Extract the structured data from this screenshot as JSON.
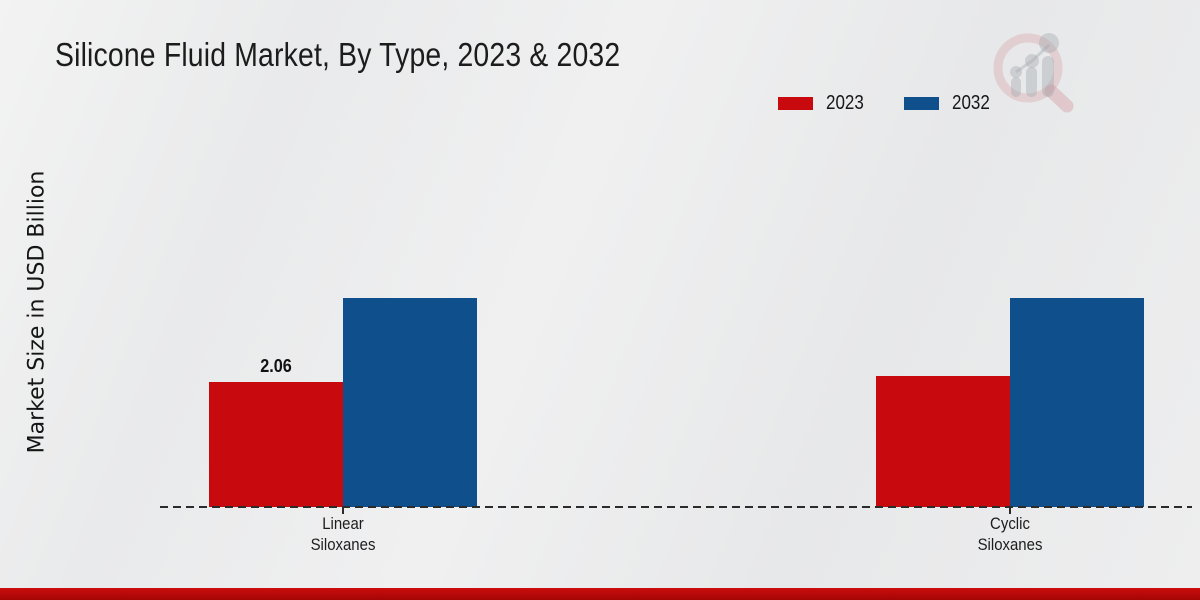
{
  "title": "Silicone Fluid Market, By Type, 2023 & 2032",
  "y_axis_label": "Market Size in USD Billion",
  "legend": {
    "position": "top-right",
    "items": [
      {
        "label": "2023",
        "color": "#c80a0f"
      },
      {
        "label": "2032",
        "color": "#0f4f8c"
      }
    ]
  },
  "footer": {
    "banner_color": "#b20808"
  },
  "watermark": {
    "name": "market-research-magnifier-logo"
  },
  "chart_data": {
    "type": "bar",
    "title": "Silicone Fluid Market, By Type, 2023 & 2032",
    "xlabel": "",
    "ylabel": "Market Size in USD Billion",
    "categories": [
      "Linear Siloxanes",
      "Cyclic Siloxanes"
    ],
    "series": [
      {
        "name": "2023",
        "color": "#c80a0f",
        "values": [
          2.06,
          2.16
        ],
        "data_labels": [
          "2.06",
          ""
        ]
      },
      {
        "name": "2032",
        "color": "#0f4f8c",
        "values": [
          3.44,
          3.44
        ],
        "data_labels": [
          "",
          ""
        ]
      }
    ],
    "ylim": [
      0,
      4.1
    ],
    "grid": false,
    "y_ticks_visible": false,
    "baseline_style": "dashed",
    "legend_position": "top-right"
  }
}
